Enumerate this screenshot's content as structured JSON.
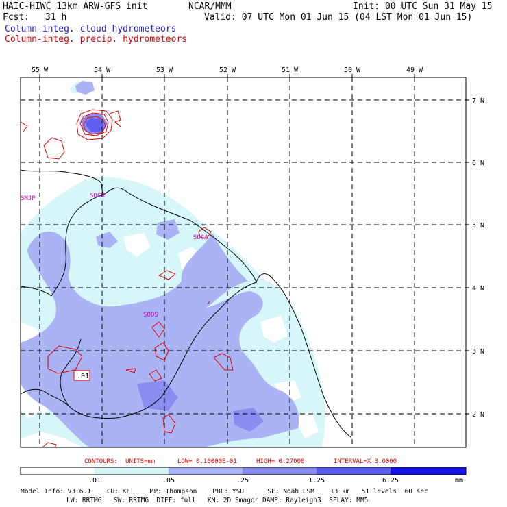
{
  "header": {
    "model": "HAIC-HIWC 13km ARW-GFS init",
    "agency": "NCAR/MMM",
    "init": "Init: 00 UTC Sun 31 May 15",
    "fcst_label": "Fcst:",
    "fcst_value": "31 h",
    "valid": "Valid: 07 UTC Mon 01 Jun 15 (04 LST Mon 01 Jun 15)",
    "field_cloud": "Column-integ. cloud hydrometeors",
    "field_precip": "Column-integ. precip. hydrometeors"
  },
  "colors": {
    "cloud_label": "#2020d0",
    "precip_label": "#e00000",
    "land_outline": "#000000",
    "precip_contour": "#e00000",
    "station_label": "#cc00cc",
    "shade_1": "#d6f6fa",
    "shade_2": "#aab4f4",
    "shade_3": "#8a8cf0",
    "shade_4": "#6060f0",
    "shade_5": "#3a3aee",
    "shade_6": "#1414e6"
  },
  "longitude_labels": [
    "55 W",
    "54 W",
    "53 W",
    "52 W",
    "51 W",
    "50 W",
    "49 W"
  ],
  "latitude_labels": [
    "7 N",
    "6 N",
    "5 N",
    "4 N",
    "3 N",
    "2 N"
  ],
  "stations": [
    "SMJP",
    "SOCM",
    "SOCA",
    "SOOS"
  ],
  "contour_value_label": ".01",
  "contour_info": {
    "contours": "CONTOURS:",
    "units": "UNITS=mm",
    "low": "LOW= 0.10000E-01",
    "high": "HIGH= 0.27000",
    "interval": "INTERVAL=X  3.0000"
  },
  "colorbar": {
    "ticks": [
      ".01",
      ".05",
      ".25",
      "1.25",
      "6.25"
    ],
    "unit": "mm"
  },
  "model_info": {
    "line1": "Model Info: V3.6.1    CU: KF     MP: Thompson    PBL: YSU      SF: Noah LSM    13 km   51 levels  60 sec",
    "line2": "LW: RRTMG   SW: RRTMG  DIFF: full   KM: 2D Smagor DAMP: Rayleigh3  SFLAY: MM5"
  }
}
